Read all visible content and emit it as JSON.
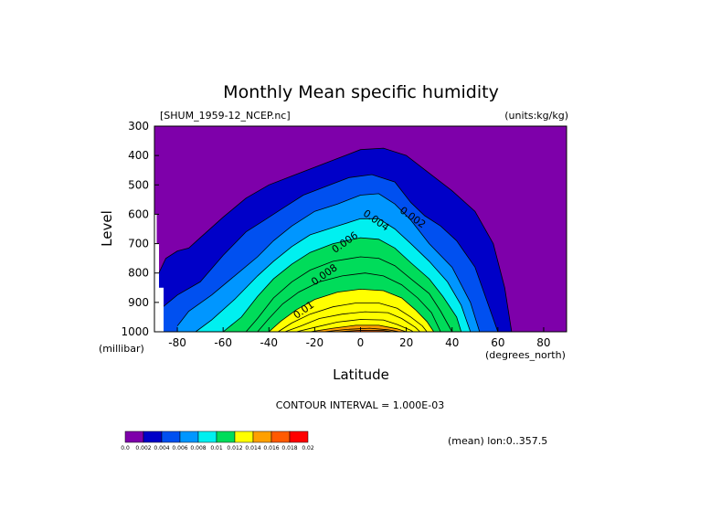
{
  "chart_data": {
    "type": "heatmap",
    "title": "Monthly Mean specific humidity",
    "file_label": "[SHUM_1959-12_NCEP.nc]",
    "units_label": "(units:kg/kg)",
    "xlabel": "Latitude",
    "ylabel": "Level",
    "x_unit_label": "(degrees_north)",
    "y_unit_label": "(millibar)",
    "xlim": [
      -90,
      90
    ],
    "ylim": [
      1000,
      300
    ],
    "x_ticks": [
      -80,
      -60,
      -40,
      -20,
      0,
      20,
      40,
      60,
      80
    ],
    "y_ticks": [
      300,
      400,
      500,
      600,
      700,
      800,
      900,
      1000
    ],
    "contour_interval_text": "CONTOUR INTERVAL = 1.000E-03",
    "mean_text": "(mean) lon:0..357.5",
    "contour_labels": [
      {
        "text": "0.002",
        "lat": 22,
        "level": 620
      },
      {
        "text": "0.004",
        "lat": 6,
        "level": 630
      },
      {
        "text": "0.006",
        "lat": -6,
        "level": 705
      },
      {
        "text": "0.008",
        "lat": -15,
        "level": 815
      },
      {
        "text": "0.01",
        "lat": -24,
        "level": 935
      }
    ],
    "colorbar": {
      "levels": [
        "0.0",
        "0.002",
        "0.004",
        "0.006",
        "0.008",
        "0.01",
        "0.012",
        "0.014",
        "0.016",
        "0.018",
        "0.02"
      ],
      "colors": [
        "#7e00aa",
        "#0000c8",
        "#0050f0",
        "#0096ff",
        "#00f0f0",
        "#00dc5a",
        "#ffff00",
        "#ffa000",
        "#ff5a00",
        "#ff0000"
      ]
    },
    "profiles": [
      {
        "value": 0.001,
        "color": "#0000c8",
        "pts": [
          [
            -89,
            815
          ],
          [
            -85,
            750
          ],
          [
            -80,
            725
          ],
          [
            -75,
            715
          ],
          [
            -70,
            680
          ],
          [
            -60,
            610
          ],
          [
            -50,
            545
          ],
          [
            -40,
            500
          ],
          [
            -30,
            470
          ],
          [
            -20,
            440
          ],
          [
            -10,
            410
          ],
          [
            0,
            380
          ],
          [
            10,
            375
          ],
          [
            20,
            400
          ],
          [
            30,
            460
          ],
          [
            40,
            520
          ],
          [
            50,
            590
          ],
          [
            58,
            700
          ],
          [
            63,
            850
          ],
          [
            66,
            1000
          ]
        ]
      },
      {
        "value": 0.002,
        "color": "#0050f0",
        "pts": [
          [
            -87,
            920
          ],
          [
            -80,
            875
          ],
          [
            -70,
            830
          ],
          [
            -60,
            740
          ],
          [
            -50,
            660
          ],
          [
            -42,
            620
          ],
          [
            -35,
            585
          ],
          [
            -25,
            535
          ],
          [
            -15,
            505
          ],
          [
            -5,
            475
          ],
          [
            5,
            465
          ],
          [
            15,
            490
          ],
          [
            22,
            560
          ],
          [
            28,
            605
          ],
          [
            35,
            640
          ],
          [
            42,
            690
          ],
          [
            50,
            780
          ],
          [
            55,
            890
          ],
          [
            60,
            1000
          ]
        ]
      },
      {
        "value": 0.003,
        "color": "#0096ff",
        "pts": [
          [
            -80,
            980
          ],
          [
            -75,
            930
          ],
          [
            -65,
            875
          ],
          [
            -55,
            810
          ],
          [
            -45,
            745
          ],
          [
            -38,
            690
          ],
          [
            -30,
            640
          ],
          [
            -20,
            590
          ],
          [
            -10,
            565
          ],
          [
            0,
            535
          ],
          [
            8,
            530
          ],
          [
            15,
            565
          ],
          [
            22,
            620
          ],
          [
            30,
            700
          ],
          [
            40,
            780
          ],
          [
            48,
            900
          ],
          [
            52,
            1000
          ]
        ]
      },
      {
        "value": 0.004,
        "color": "#00f0f0",
        "pts": [
          [
            -72,
            1000
          ],
          [
            -65,
            960
          ],
          [
            -55,
            890
          ],
          [
            -45,
            810
          ],
          [
            -38,
            760
          ],
          [
            -30,
            710
          ],
          [
            -22,
            670
          ],
          [
            -10,
            640
          ],
          [
            0,
            615
          ],
          [
            8,
            615
          ],
          [
            15,
            650
          ],
          [
            22,
            700
          ],
          [
            30,
            760
          ],
          [
            38,
            830
          ],
          [
            44,
            910
          ],
          [
            48,
            1000
          ]
        ]
      },
      {
        "value": 0.005,
        "color": "#00dc5a",
        "pts": [
          [
            -60,
            1000
          ],
          [
            -52,
            950
          ],
          [
            -45,
            880
          ],
          [
            -38,
            820
          ],
          [
            -30,
            770
          ],
          [
            -22,
            730
          ],
          [
            -12,
            700
          ],
          [
            0,
            680
          ],
          [
            8,
            685
          ],
          [
            15,
            715
          ],
          [
            22,
            765
          ],
          [
            30,
            820
          ],
          [
            36,
            880
          ],
          [
            42,
            950
          ],
          [
            44,
            1000
          ]
        ]
      },
      {
        "value": 0.006,
        "color": "#00dc5a",
        "pts": [
          [
            -50,
            1000
          ],
          [
            -45,
            955
          ],
          [
            -38,
            885
          ],
          [
            -30,
            830
          ],
          [
            -22,
            790
          ],
          [
            -12,
            760
          ],
          [
            0,
            745
          ],
          [
            8,
            750
          ],
          [
            15,
            775
          ],
          [
            22,
            820
          ],
          [
            30,
            870
          ],
          [
            35,
            930
          ],
          [
            40,
            1000
          ]
        ]
      },
      {
        "value": 0.007,
        "color": "#00dc5a",
        "pts": [
          [
            -45,
            1000
          ],
          [
            -40,
            955
          ],
          [
            -34,
            905
          ],
          [
            -27,
            865
          ],
          [
            -18,
            830
          ],
          [
            -8,
            810
          ],
          [
            2,
            800
          ],
          [
            10,
            810
          ],
          [
            18,
            840
          ],
          [
            25,
            885
          ],
          [
            31,
            935
          ],
          [
            35,
            1000
          ]
        ]
      },
      {
        "value": 0.008,
        "color": "#ffff00",
        "pts": [
          [
            -40,
            1000
          ],
          [
            -35,
            965
          ],
          [
            -28,
            925
          ],
          [
            -20,
            890
          ],
          [
            -10,
            865
          ],
          [
            0,
            855
          ],
          [
            10,
            860
          ],
          [
            18,
            885
          ],
          [
            24,
            925
          ],
          [
            29,
            965
          ],
          [
            32,
            1000
          ]
        ]
      },
      {
        "value": 0.009,
        "color": "#ffff00",
        "pts": [
          [
            -36,
            1000
          ],
          [
            -30,
            970
          ],
          [
            -22,
            940
          ],
          [
            -12,
            915
          ],
          [
            -2,
            902
          ],
          [
            8,
            902
          ],
          [
            16,
            920
          ],
          [
            22,
            950
          ],
          [
            27,
            980
          ],
          [
            29,
            1000
          ]
        ]
      },
      {
        "value": 0.01,
        "color": "#ffff00",
        "pts": [
          [
            -33,
            1000
          ],
          [
            -26,
            980
          ],
          [
            -18,
            955
          ],
          [
            -8,
            940
          ],
          [
            2,
            932
          ],
          [
            12,
            935
          ],
          [
            18,
            955
          ],
          [
            24,
            985
          ],
          [
            26,
            1000
          ]
        ]
      },
      {
        "value": 0.011,
        "color": "#ffff00",
        "pts": [
          [
            -28,
            1000
          ],
          [
            -20,
            985
          ],
          [
            -10,
            967
          ],
          [
            0,
            958
          ],
          [
            10,
            960
          ],
          [
            16,
            975
          ],
          [
            22,
            995
          ],
          [
            23,
            1000
          ]
        ]
      },
      {
        "value": 0.012,
        "color": "#ffa000",
        "pts": [
          [
            -22,
            1000
          ],
          [
            -12,
            988
          ],
          [
            -2,
            978
          ],
          [
            8,
            978
          ],
          [
            16,
            990
          ],
          [
            20,
            1000
          ]
        ]
      },
      {
        "value": 0.013,
        "color": "#ffa000",
        "pts": [
          [
            -16,
            1000
          ],
          [
            -6,
            992
          ],
          [
            4,
            988
          ],
          [
            12,
            993
          ],
          [
            17,
            1000
          ]
        ]
      },
      {
        "value": 0.014,
        "color": "#ff5a00",
        "pts": [
          [
            -10,
            1000
          ],
          [
            0,
            995
          ],
          [
            10,
            996
          ],
          [
            14,
            1000
          ]
        ]
      }
    ],
    "topography": [
      {
        "lat_from": -90,
        "lat_to": -89,
        "level_top": 600
      },
      {
        "lat_from": -89,
        "lat_to": -88,
        "level_top": 700
      },
      {
        "lat_from": -88,
        "lat_to": -86,
        "level_top": 850
      }
    ]
  }
}
